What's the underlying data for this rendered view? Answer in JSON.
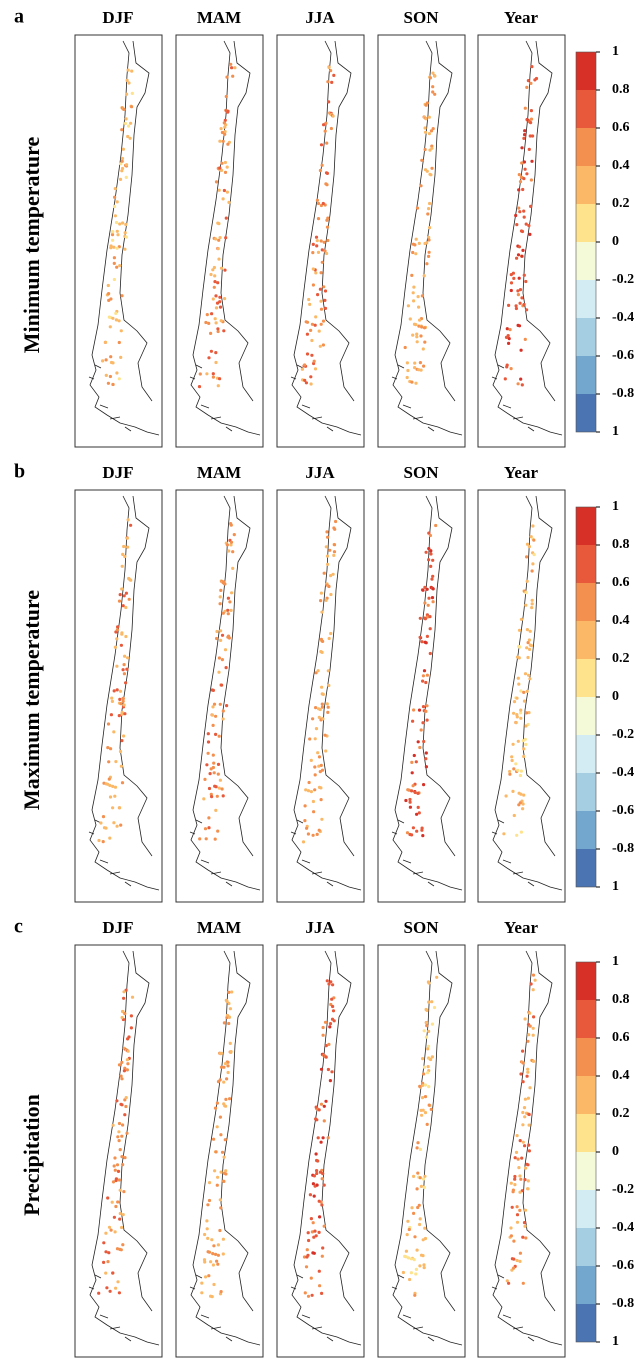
{
  "panels": [
    {
      "letter": "a",
      "row_label": "Minimum temperature",
      "columns": [
        "DJF",
        "MAM",
        "JJA",
        "SON",
        "Year"
      ],
      "colorbar": {
        "labels": [
          "1",
          "0.8",
          "0.6",
          "0.4",
          "0.2",
          "0",
          "-0.2",
          "-0.4",
          "-0.6",
          "-0.8",
          "1"
        ]
      }
    },
    {
      "letter": "b",
      "row_label": "Maximum temperature",
      "columns": [
        "DJF",
        "MAM",
        "JJA",
        "SON",
        "Year"
      ],
      "colorbar": {
        "labels": [
          "1",
          "0.8",
          "0.6",
          "0.4",
          "0.2",
          "0",
          "-0.2",
          "-0.4",
          "-0.6",
          "-0.8",
          "1"
        ]
      }
    },
    {
      "letter": "c",
      "row_label": "Precipitation",
      "columns": [
        "DJF",
        "MAM",
        "JJA",
        "SON",
        "Year"
      ],
      "colorbar": {
        "labels": [
          "1",
          "0.8",
          "0.6",
          "0.4",
          "0.2",
          "0",
          "-0.2",
          "-0.4",
          "-0.6",
          "-0.8",
          "1"
        ]
      }
    }
  ],
  "colorbar_colors": [
    "#d73027",
    "#e8593b",
    "#f4904f",
    "#fbb968",
    "#fee28c",
    "#f4f9d8",
    "#d3ebf2",
    "#a6cee3",
    "#74a7cd",
    "#4a74b2"
  ]
}
